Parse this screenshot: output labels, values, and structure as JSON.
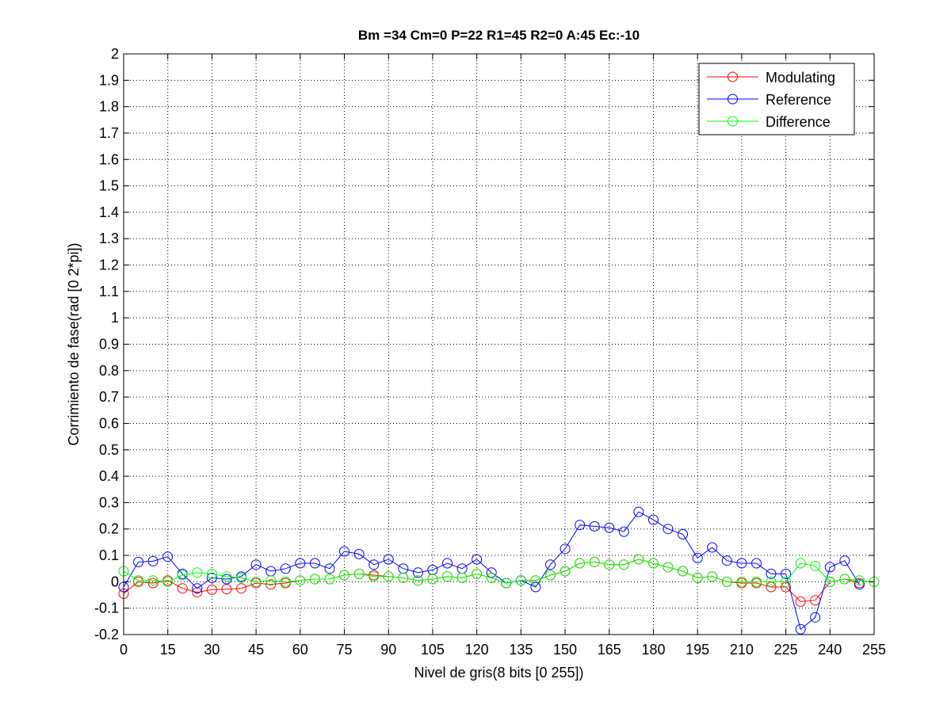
{
  "chart_data": {
    "type": "line",
    "title": "Bm =34  Cm=0  P=22  R1=45  R2=0  A:45  Ec:-10",
    "xlabel": "Nivel de gris(8 bits [0 255])",
    "ylabel": "Corrimiento de fase(rad [0 2*pi])",
    "xlim": [
      0,
      255
    ],
    "ylim": [
      -0.2,
      2
    ],
    "xticks": [
      0,
      15,
      30,
      45,
      60,
      75,
      90,
      105,
      120,
      135,
      150,
      165,
      180,
      195,
      210,
      225,
      240,
      255
    ],
    "yticks": [
      -0.2,
      -0.1,
      0,
      0.1,
      0.2,
      0.3,
      0.4,
      0.5,
      0.6,
      0.7,
      0.8,
      0.9,
      1,
      1.1,
      1.2,
      1.3,
      1.4,
      1.5,
      1.6,
      1.7,
      1.8,
      1.9,
      2
    ],
    "ytick_labels": [
      "-0.2",
      "-0.1",
      "0",
      "0.1",
      "0.2",
      "0.3",
      "0.4",
      "0.5",
      "0.6",
      "0.7",
      "0.8",
      "0.9",
      "1",
      "1.1",
      "1.2",
      "1.3",
      "1.4",
      "1.5",
      "1.6",
      "1.7",
      "1.8",
      "1.9",
      "2"
    ],
    "grid": true,
    "legend_position": "top-right",
    "series": [
      {
        "name": "Modulating",
        "color": "#ff0000",
        "x": [
          0,
          5,
          10,
          15,
          20,
          25,
          30,
          35,
          40,
          45,
          50,
          55,
          60,
          65,
          70,
          75,
          80,
          85,
          90,
          95,
          100,
          105,
          110,
          115,
          120,
          125,
          130,
          135,
          140,
          145,
          150,
          155,
          160,
          165,
          170,
          175,
          180,
          185,
          190,
          195,
          200,
          205,
          210,
          215,
          220,
          225,
          230,
          235,
          240,
          245,
          250
        ],
        "y": [
          -0.045,
          0.0,
          -0.005,
          0.005,
          -0.025,
          -0.04,
          -0.03,
          -0.028,
          -0.025,
          -0.005,
          -0.01,
          -0.005,
          0.005,
          0.01,
          0.01,
          0.025,
          0.03,
          0.025,
          0.02,
          0.015,
          0.005,
          0.01,
          0.02,
          0.015,
          0.03,
          0.015,
          -0.005,
          0.005,
          0.005,
          0.025,
          0.04,
          0.07,
          0.075,
          0.065,
          0.065,
          0.085,
          0.07,
          0.055,
          0.04,
          0.015,
          0.02,
          0.0,
          -0.005,
          -0.005,
          -0.02,
          -0.02,
          -0.075,
          -0.07,
          0.0,
          0.01,
          -0.005
        ]
      },
      {
        "name": "Reference",
        "color": "#0000ff",
        "x": [
          0,
          5,
          10,
          15,
          20,
          25,
          30,
          35,
          40,
          45,
          50,
          55,
          60,
          65,
          70,
          75,
          80,
          85,
          90,
          95,
          100,
          105,
          110,
          115,
          120,
          125,
          130,
          135,
          140,
          145,
          150,
          155,
          160,
          165,
          170,
          175,
          180,
          185,
          190,
          195,
          200,
          205,
          210,
          215,
          220,
          225,
          230,
          235,
          240,
          245,
          250
        ],
        "y": [
          -0.02,
          0.075,
          0.078,
          0.095,
          0.03,
          -0.025,
          0.015,
          0.01,
          0.02,
          0.065,
          0.04,
          0.05,
          0.07,
          0.07,
          0.05,
          0.115,
          0.105,
          0.065,
          0.085,
          0.05,
          0.035,
          0.045,
          0.07,
          0.05,
          0.085,
          0.035,
          -0.005,
          0.005,
          -0.02,
          0.065,
          0.125,
          0.215,
          0.21,
          0.205,
          0.19,
          0.265,
          0.235,
          0.2,
          0.18,
          0.09,
          0.13,
          0.08,
          0.07,
          0.07,
          0.03,
          0.03,
          -0.18,
          -0.135,
          0.055,
          0.08,
          -0.01
        ]
      },
      {
        "name": "Difference",
        "color": "#00ff00",
        "x": [
          0,
          5,
          10,
          15,
          20,
          25,
          30,
          35,
          40,
          45,
          50,
          55,
          60,
          65,
          70,
          75,
          80,
          85,
          90,
          95,
          100,
          105,
          110,
          115,
          120,
          125,
          130,
          135,
          140,
          145,
          150,
          155,
          160,
          165,
          170,
          175,
          180,
          185,
          190,
          195,
          200,
          205,
          210,
          215,
          220,
          225,
          230,
          235,
          240,
          245,
          250,
          255
        ],
        "y": [
          0.04,
          0.005,
          0.005,
          0.0,
          0.025,
          0.035,
          0.03,
          0.02,
          0.015,
          0.0,
          0.005,
          0.0,
          0.005,
          0.01,
          0.01,
          0.025,
          0.03,
          0.02,
          0.02,
          0.015,
          0.005,
          0.01,
          0.02,
          0.015,
          0.03,
          0.015,
          -0.005,
          0.005,
          0.005,
          0.025,
          0.04,
          0.07,
          0.075,
          0.065,
          0.065,
          0.085,
          0.07,
          0.055,
          0.04,
          0.015,
          0.02,
          0.0,
          0.0,
          0.0,
          0.0,
          0.0,
          0.07,
          0.06,
          0.0,
          0.01,
          0.005,
          0.0
        ]
      }
    ]
  }
}
